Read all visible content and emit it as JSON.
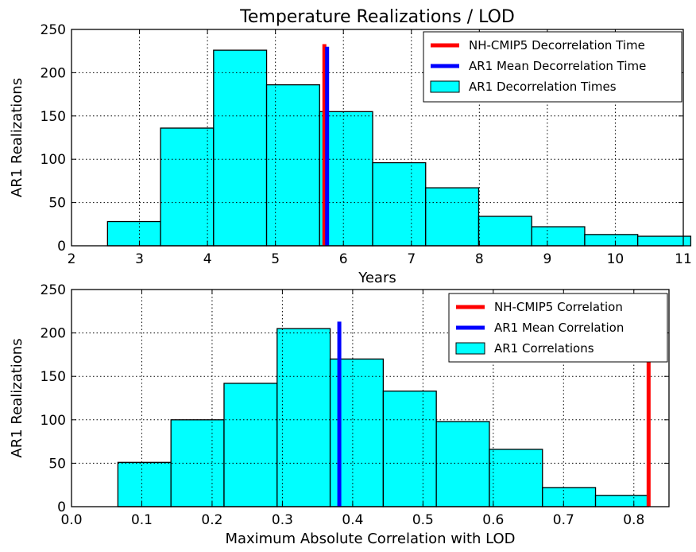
{
  "chart_data": [
    {
      "type": "bar",
      "title": "Temperature Realizations / LOD",
      "xlabel": "Years",
      "ylabel": "AR1 Realizations",
      "xlim": [
        2,
        11
      ],
      "ylim": [
        0,
        250
      ],
      "xticks": [
        2,
        3,
        4,
        5,
        6,
        7,
        8,
        9,
        10,
        11
      ],
      "yticks": [
        0,
        50,
        100,
        150,
        200,
        250
      ],
      "grid": true,
      "legend_position": "top-right",
      "bin_edges": [
        2.53,
        3.31,
        4.09,
        4.87,
        5.65,
        6.43,
        7.21,
        7.99,
        8.77,
        9.55,
        10.33,
        11.11
      ],
      "values": [
        28,
        136,
        226,
        186,
        155,
        96,
        67,
        34,
        22,
        13,
        11
      ],
      "histogram_color": "#00ffff",
      "vlines": [
        {
          "name": "NH-CMIP5 Decorrelation Time",
          "x": 5.72,
          "height": 233,
          "color": "#ff0000"
        },
        {
          "name": "AR1 Mean Decorrelation Time",
          "x": 5.76,
          "height": 230,
          "color": "#0000ff"
        }
      ],
      "legend": [
        {
          "label": "NH-CMIP5 Decorrelation Time",
          "kind": "line",
          "color": "#ff0000"
        },
        {
          "label": "AR1 Mean Decorrelation Time",
          "kind": "line",
          "color": "#0000ff"
        },
        {
          "label": "AR1 Decorrelation Times",
          "kind": "patch",
          "color": "#00ffff"
        }
      ]
    },
    {
      "type": "bar",
      "title": "",
      "xlabel": "Maximum Absolute Correlation with LOD",
      "ylabel": "AR1 Realizations",
      "xlim": [
        0.0,
        0.85
      ],
      "ylim": [
        0,
        250
      ],
      "xticks": [
        0.0,
        0.1,
        0.2,
        0.3,
        0.4,
        0.5,
        0.6,
        0.7,
        0.8
      ],
      "xtick_labels": [
        "0.0",
        "0.1",
        "0.2",
        "0.3",
        "0.4",
        "0.5",
        "0.6",
        "0.7",
        "0.8"
      ],
      "yticks": [
        0,
        50,
        100,
        150,
        200,
        250
      ],
      "grid": true,
      "legend_position": "top-right",
      "bin_edges": [
        0.066,
        0.1415,
        0.217,
        0.2925,
        0.368,
        0.4435,
        0.519,
        0.5945,
        0.67,
        0.7455,
        0.821
      ],
      "values": [
        51,
        100,
        142,
        205,
        170,
        133,
        98,
        66,
        22,
        13
      ],
      "histogram_color": "#00ffff",
      "vlines": [
        {
          "name": "NH-CMIP5 Correlation",
          "x": 0.821,
          "height": 213,
          "color": "#ff0000"
        },
        {
          "name": "AR1 Mean Correlation",
          "x": 0.381,
          "height": 213,
          "color": "#0000ff"
        }
      ],
      "legend": [
        {
          "label": "NH-CMIP5 Correlation",
          "kind": "line",
          "color": "#ff0000"
        },
        {
          "label": "AR1 Mean Correlation",
          "kind": "line",
          "color": "#0000ff"
        },
        {
          "label": "AR1 Correlations",
          "kind": "patch",
          "color": "#00ffff"
        }
      ]
    }
  ]
}
